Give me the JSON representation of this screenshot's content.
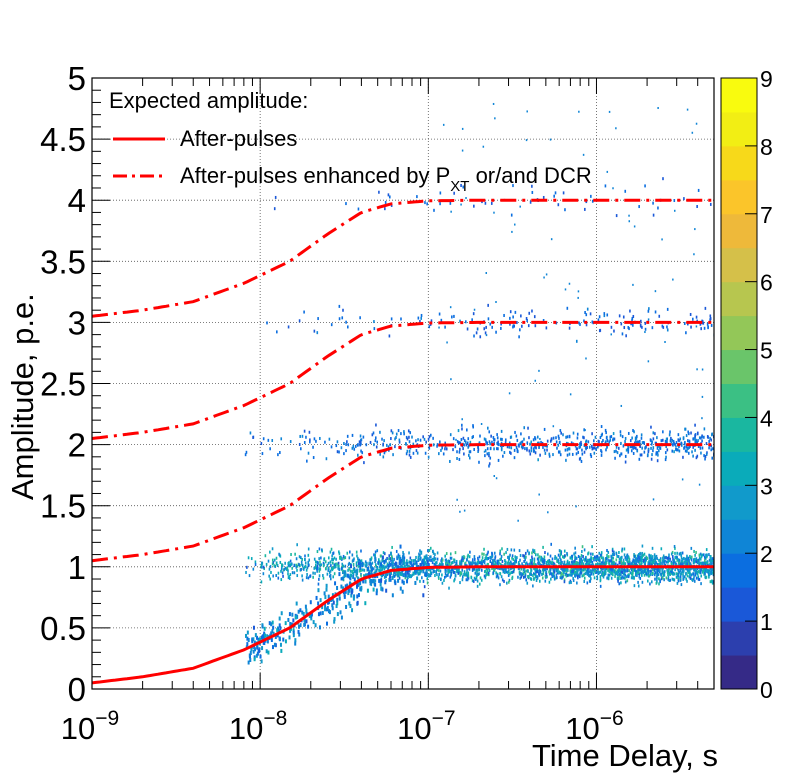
{
  "chart_data": {
    "type": "heatmap",
    "title": "",
    "xlabel": "Time Delay, s",
    "ylabel": "Amplitude, p.e.",
    "xscale": "log",
    "xlim": [
      1e-09,
      5e-06
    ],
    "ylim": [
      0,
      5
    ],
    "grid": true,
    "x_ticks": [
      {
        "value": 1e-09,
        "base": "10",
        "exp": "−9"
      },
      {
        "value": 1e-08,
        "base": "10",
        "exp": "−8"
      },
      {
        "value": 1e-07,
        "base": "10",
        "exp": "−7"
      },
      {
        "value": 1e-06,
        "base": "10",
        "exp": "−6"
      }
    ],
    "y_ticks": [
      {
        "value": 0,
        "label": "0"
      },
      {
        "value": 0.5,
        "label": "0.5"
      },
      {
        "value": 1,
        "label": "1"
      },
      {
        "value": 1.5,
        "label": "1.5"
      },
      {
        "value": 2,
        "label": "2"
      },
      {
        "value": 2.5,
        "label": "2.5"
      },
      {
        "value": 3,
        "label": "3"
      },
      {
        "value": 3.5,
        "label": "3.5"
      },
      {
        "value": 4,
        "label": "4"
      },
      {
        "value": 4.5,
        "label": "4.5"
      },
      {
        "value": 5,
        "label": "5"
      }
    ],
    "colorbar": {
      "range": [
        0,
        9
      ],
      "tick_labels": [
        "0",
        "1",
        "2",
        "3",
        "4",
        "5",
        "6",
        "7",
        "8",
        "9"
      ],
      "palette": [
        "#352a87",
        "#2c3fae",
        "#1a58d8",
        "#0b6ee0",
        "#0f85d6",
        "#119acb",
        "#0aabba",
        "#1ab7a0",
        "#3bc084",
        "#6ac56a",
        "#93c758",
        "#b7c64f",
        "#d5c049",
        "#eeb93a",
        "#fbc52a",
        "#f7d91a",
        "#f2ee14",
        "#f9fb0e"
      ]
    },
    "legend": {
      "placement": "top-left",
      "title": "Expected amplitude:",
      "entries": [
        {
          "label": "After-pulses",
          "style": "solid",
          "color": "#ff0000"
        },
        {
          "label_main": "After-pulses enhanced by P",
          "label_sub": "XT",
          "label_rest": " or/and DCR",
          "style": "dash-dot",
          "color": "#ff0000"
        }
      ]
    },
    "series": [
      {
        "name": "After-pulses",
        "style": "solid",
        "color": "#ff0000",
        "model": "recovery",
        "offset": 0,
        "x_points": [
          1e-09,
          2e-09,
          4e-09,
          8e-09,
          1.5e-08,
          2.5e-08,
          4e-08,
          6e-08,
          1e-07,
          2e-07,
          5e-07,
          1e-06,
          5e-06
        ],
        "y_points": [
          0.05,
          0.1,
          0.17,
          0.32,
          0.5,
          0.72,
          0.9,
          0.97,
          0.995,
          1.0,
          1.0,
          1.0,
          1.0
        ]
      },
      {
        "name": "After-pulses enhanced by PXT or/and DCR (+1)",
        "style": "dash-dot",
        "color": "#ff0000",
        "offset": 1,
        "x_points": [
          1e-09,
          2e-09,
          4e-09,
          8e-09,
          1.5e-08,
          2.5e-08,
          4e-08,
          6e-08,
          1e-07,
          2e-07,
          5e-07,
          1e-06,
          5e-06
        ],
        "y_points": [
          1.05,
          1.1,
          1.17,
          1.32,
          1.5,
          1.72,
          1.9,
          1.97,
          1.995,
          2.0,
          2.0,
          2.0,
          2.0
        ]
      },
      {
        "name": "After-pulses enhanced by PXT or/and DCR (+2)",
        "style": "dash-dot",
        "color": "#ff0000",
        "offset": 2,
        "x_points": [
          1e-09,
          2e-09,
          4e-09,
          8e-09,
          1.5e-08,
          2.5e-08,
          4e-08,
          6e-08,
          1e-07,
          2e-07,
          5e-07,
          1e-06,
          5e-06
        ],
        "y_points": [
          2.05,
          2.1,
          2.17,
          2.32,
          2.5,
          2.72,
          2.9,
          2.97,
          2.995,
          3.0,
          3.0,
          3.0,
          3.0
        ]
      },
      {
        "name": "After-pulses enhanced by PXT or/and DCR (+3)",
        "style": "dash-dot",
        "color": "#ff0000",
        "offset": 3,
        "x_points": [
          1e-09,
          2e-09,
          4e-09,
          8e-09,
          1.5e-08,
          2.5e-08,
          4e-08,
          6e-08,
          1e-07,
          2e-07,
          5e-07,
          1e-06,
          5e-06
        ],
        "y_points": [
          3.05,
          3.1,
          3.17,
          3.32,
          3.5,
          3.72,
          3.9,
          3.97,
          3.995,
          4.0,
          4.0,
          4.0,
          4.0
        ]
      }
    ],
    "density_bands": [
      {
        "center": 1.0,
        "spread": 0.06,
        "x_start": 8e-09,
        "x_end": 5e-06,
        "relative_density": 1.0
      },
      {
        "center": 2.0,
        "spread": 0.06,
        "x_start": 8e-09,
        "x_end": 5e-06,
        "relative_density": 0.25
      },
      {
        "center": 3.0,
        "spread": 0.06,
        "x_start": 8e-09,
        "x_end": 5e-06,
        "relative_density": 0.05
      },
      {
        "center": 4.0,
        "spread": 0.06,
        "x_start": 8e-09,
        "x_end": 5e-06,
        "relative_density": 0.01
      }
    ]
  }
}
